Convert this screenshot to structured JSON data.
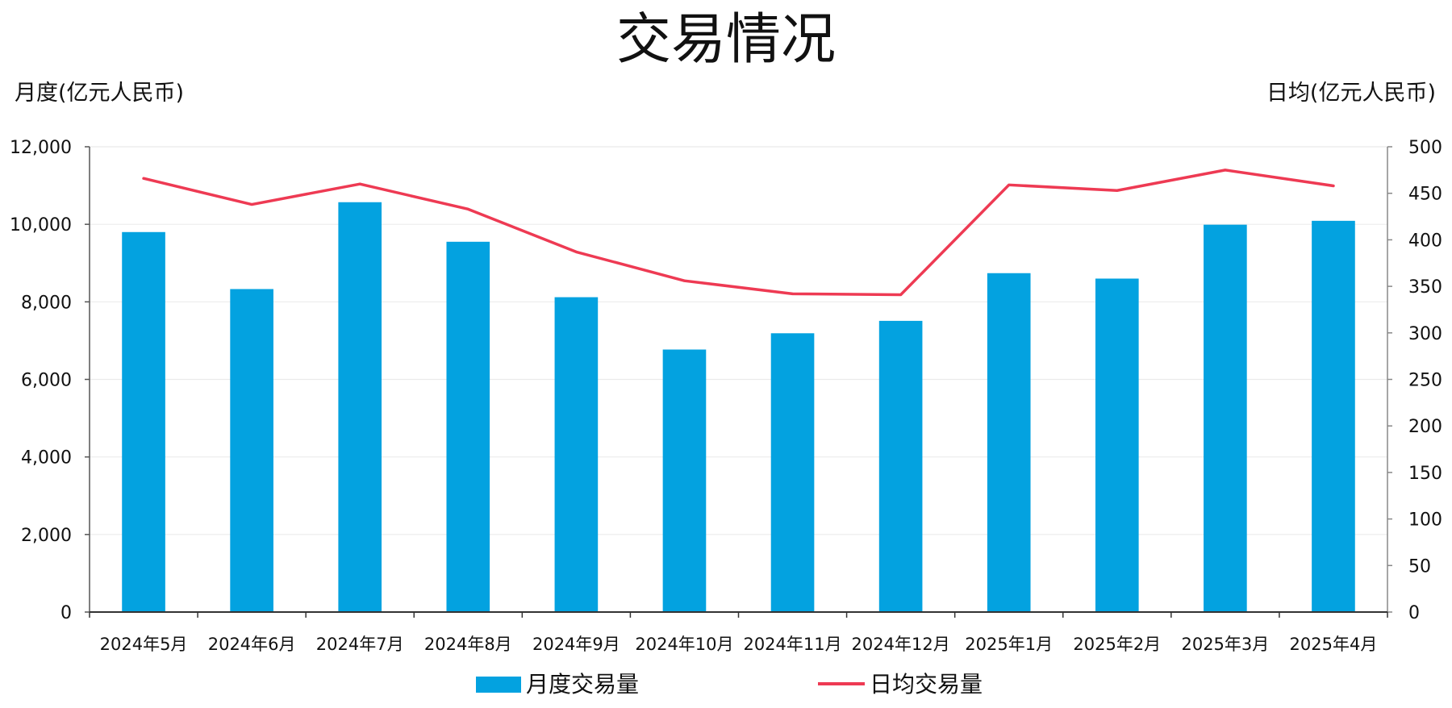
{
  "chart_data": {
    "type": "bar",
    "title": "交易情况",
    "categories": [
      "2024年5月",
      "2024年6月",
      "2024年7月",
      "2024年8月",
      "2024年9月",
      "2024年10月",
      "2024年11月",
      "2024年12月",
      "2025年1月",
      "2025年2月",
      "2025年3月",
      "2025年4月"
    ],
    "ylabel": "月度(亿元人民币)",
    "y2label": "日均(亿元人民币)",
    "ylim": [
      0,
      12000
    ],
    "y2lim": [
      0,
      500
    ],
    "yticks": [
      0,
      2000,
      4000,
      6000,
      8000,
      10000,
      12000
    ],
    "yticks_labels": [
      "0",
      "2,000",
      "4,000",
      "6,000",
      "8,000",
      "10,000",
      "12,000"
    ],
    "y2ticks": [
      0,
      50,
      100,
      150,
      200,
      250,
      300,
      350,
      400,
      450,
      500
    ],
    "y2ticks_labels": [
      "0",
      "50",
      "100",
      "150",
      "200",
      "250",
      "300",
      "350",
      "400",
      "450",
      "500"
    ],
    "grid": true,
    "legend_position": "bottom",
    "series": [
      {
        "name": "月度交易量",
        "type": "bar",
        "axis": "left",
        "color": "#03A2E0",
        "values": [
          9800,
          8330,
          10570,
          9550,
          8120,
          6770,
          7190,
          7510,
          8740,
          8600,
          9990,
          10090
        ]
      },
      {
        "name": "日均交易量",
        "type": "line",
        "axis": "right",
        "color": "#EE3A53",
        "values": [
          466,
          438,
          460,
          433,
          387,
          356,
          342,
          341,
          459,
          453,
          475,
          458
        ]
      }
    ]
  }
}
